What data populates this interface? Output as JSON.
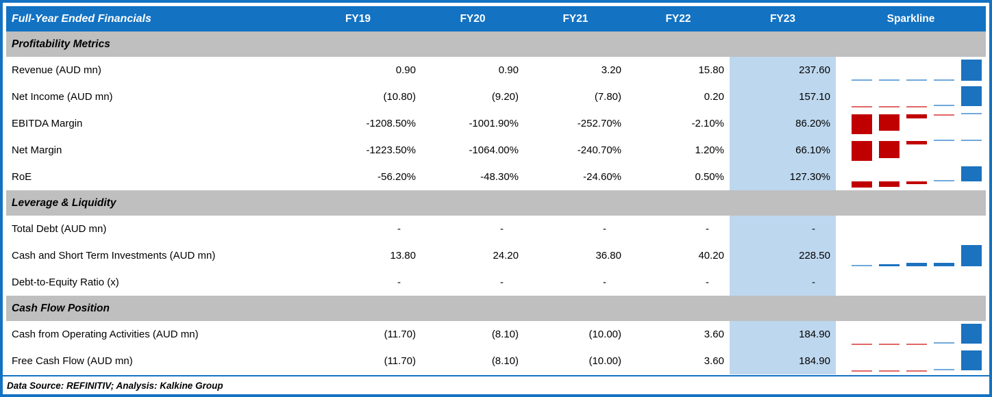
{
  "colors": {
    "header_blue": "#1372C2",
    "border_blue": "#1372C2",
    "band_gray": "#BFBFBF",
    "highlight_blue": "#BDD7EE",
    "spark_blue": "#1B72BF",
    "spark_blue_light": "#6FA8DC",
    "spark_red": "#C00000",
    "spark_red_light": "#E06666"
  },
  "table": {
    "header": {
      "title": "Full-Year Ended Financials",
      "columns": [
        "FY19",
        "FY20",
        "FY21",
        "FY22",
        "FY23"
      ],
      "sparkline_label": "Sparkline"
    },
    "sections": [
      {
        "title": "Profitability Metrics",
        "rows": [
          {
            "label": "Revenue (AUD mn)",
            "values": [
              "0.90",
              "0.90",
              "3.20",
              "15.80",
              "237.60"
            ]
          },
          {
            "label": "Net Income (AUD mn)",
            "values": [
              "(10.80)",
              "(9.20)",
              "(7.80)",
              "0.20",
              "157.10"
            ]
          },
          {
            "label": "EBITDA Margin",
            "values": [
              "-1208.50%",
              "-1001.90%",
              "-252.70%",
              "-2.10%",
              "86.20%"
            ]
          },
          {
            "label": "Net Margin",
            "values": [
              "-1223.50%",
              "-1064.00%",
              "-240.70%",
              "1.20%",
              "66.10%"
            ]
          },
          {
            "label": "RoE",
            "values": [
              "-56.20%",
              "-48.30%",
              "-24.60%",
              "0.50%",
              "127.30%"
            ]
          }
        ]
      },
      {
        "title": "Leverage & Liquidity",
        "rows": [
          {
            "label": "Total Debt (AUD mn)",
            "values": [
              "-",
              "-",
              "-",
              "-",
              "-"
            ]
          },
          {
            "label": "Cash and Short Term Investments (AUD mn)",
            "values": [
              "13.80",
              "24.20",
              "36.80",
              "40.20",
              "228.50"
            ]
          },
          {
            "label": "Debt-to-Equity Ratio (x)",
            "values": [
              "-",
              "-",
              "-",
              "-",
              "-"
            ]
          }
        ]
      },
      {
        "title": "Cash Flow Position",
        "rows": [
          {
            "label": "Cash from Operating Activities (AUD mn)",
            "values": [
              "(11.70)",
              "(8.10)",
              "(10.00)",
              "3.60",
              "184.90"
            ]
          },
          {
            "label": "Free Cash Flow (AUD mn)",
            "values": [
              "(11.70)",
              "(8.10)",
              "(10.00)",
              "3.60",
              "184.90"
            ]
          }
        ]
      }
    ],
    "footer": {
      "text": "Data Source: REFINITIV; Analysis: Kalkine Group"
    }
  },
  "chart_data": {
    "type": "table",
    "title": "Full-Year Ended Financials",
    "columns": [
      "FY19",
      "FY20",
      "FY21",
      "FY22",
      "FY23"
    ],
    "highlighted_column": "FY23",
    "sections": [
      {
        "name": "Profitability Metrics",
        "rows": [
          {
            "metric": "Revenue (AUD mn)",
            "values": [
              0.9,
              0.9,
              3.2,
              15.8,
              237.6
            ]
          },
          {
            "metric": "Net Income (AUD mn)",
            "values": [
              -10.8,
              -9.2,
              -7.8,
              0.2,
              157.1
            ]
          },
          {
            "metric": "EBITDA Margin (%)",
            "values": [
              -1208.5,
              -1001.9,
              -252.7,
              -2.1,
              86.2
            ]
          },
          {
            "metric": "Net Margin (%)",
            "values": [
              -1223.5,
              -1064.0,
              -240.7,
              1.2,
              66.1
            ]
          },
          {
            "metric": "RoE (%)",
            "values": [
              -56.2,
              -48.3,
              -24.6,
              0.5,
              127.3
            ]
          }
        ]
      },
      {
        "name": "Leverage & Liquidity",
        "rows": [
          {
            "metric": "Total Debt (AUD mn)",
            "values": [
              null,
              null,
              null,
              null,
              null
            ]
          },
          {
            "metric": "Cash and Short Term Investments (AUD mn)",
            "values": [
              13.8,
              24.2,
              36.8,
              40.2,
              228.5
            ]
          },
          {
            "metric": "Debt-to-Equity Ratio (x)",
            "values": [
              null,
              null,
              null,
              null,
              null
            ]
          }
        ]
      },
      {
        "name": "Cash Flow Position",
        "rows": [
          {
            "metric": "Cash from Operating Activities (AUD mn)",
            "values": [
              -11.7,
              -8.1,
              -10.0,
              3.6,
              184.9
            ]
          },
          {
            "metric": "Free Cash Flow (AUD mn)",
            "values": [
              -11.7,
              -8.1,
              -10.0,
              3.6,
              184.9
            ]
          }
        ]
      }
    ],
    "sparkline": {
      "type": "bar",
      "note": "per-row column sparkline scaled to row min/max with zero baseline",
      "positive_color": "#1B72BF",
      "negative_color": "#C00000"
    },
    "source": "Data Source: REFINITIV; Analysis: Kalkine Group"
  }
}
